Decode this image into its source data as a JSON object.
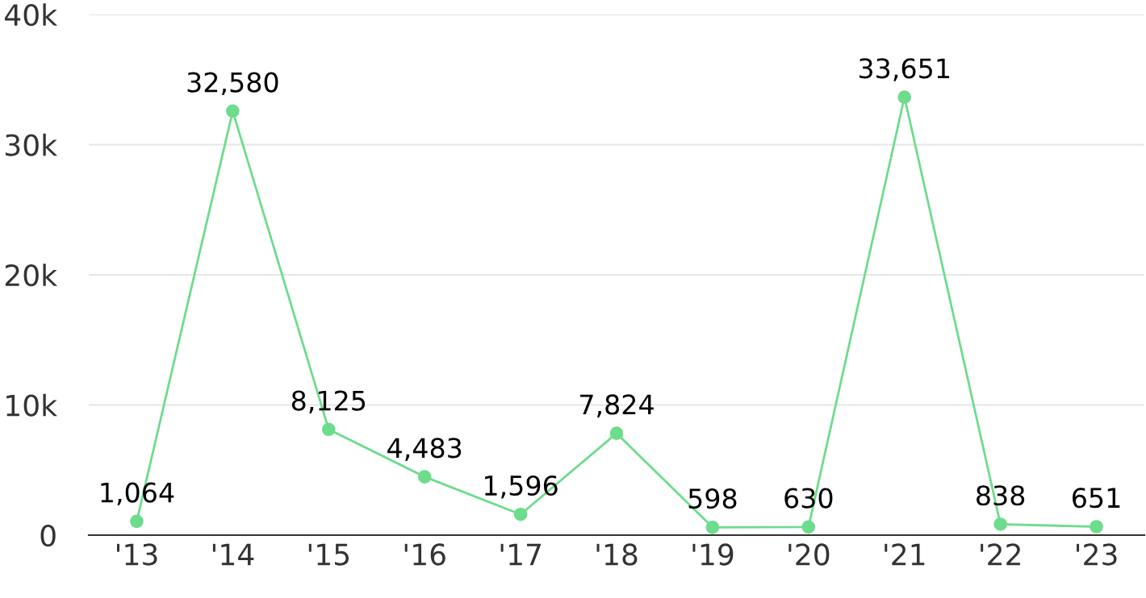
{
  "chart_data": {
    "type": "line",
    "categories": [
      "'13",
      "'14",
      "'15",
      "'16",
      "'17",
      "'18",
      "'19",
      "'20",
      "'21",
      "'22",
      "'23"
    ],
    "series": [
      {
        "color": "#6ddc8c",
        "values": [
          1064,
          32580,
          8125,
          4483,
          1596,
          7824,
          598,
          630,
          33651,
          838,
          651
        ],
        "value_labels": [
          "1,064",
          "32,580",
          "8,125",
          "4,483",
          "1,596",
          "7,824",
          "598",
          "630",
          "33,651",
          "838",
          "651"
        ]
      }
    ],
    "ylim": [
      0,
      40000
    ],
    "yticks": [
      {
        "value": 0,
        "label": "0"
      },
      {
        "value": 10000,
        "label": "10k"
      },
      {
        "value": 20000,
        "label": "20k"
      },
      {
        "value": 30000,
        "label": "30k"
      },
      {
        "value": 40000,
        "label": "40k"
      }
    ],
    "grid": "y",
    "marker": "circle",
    "line_style": "solid",
    "legend": false
  }
}
